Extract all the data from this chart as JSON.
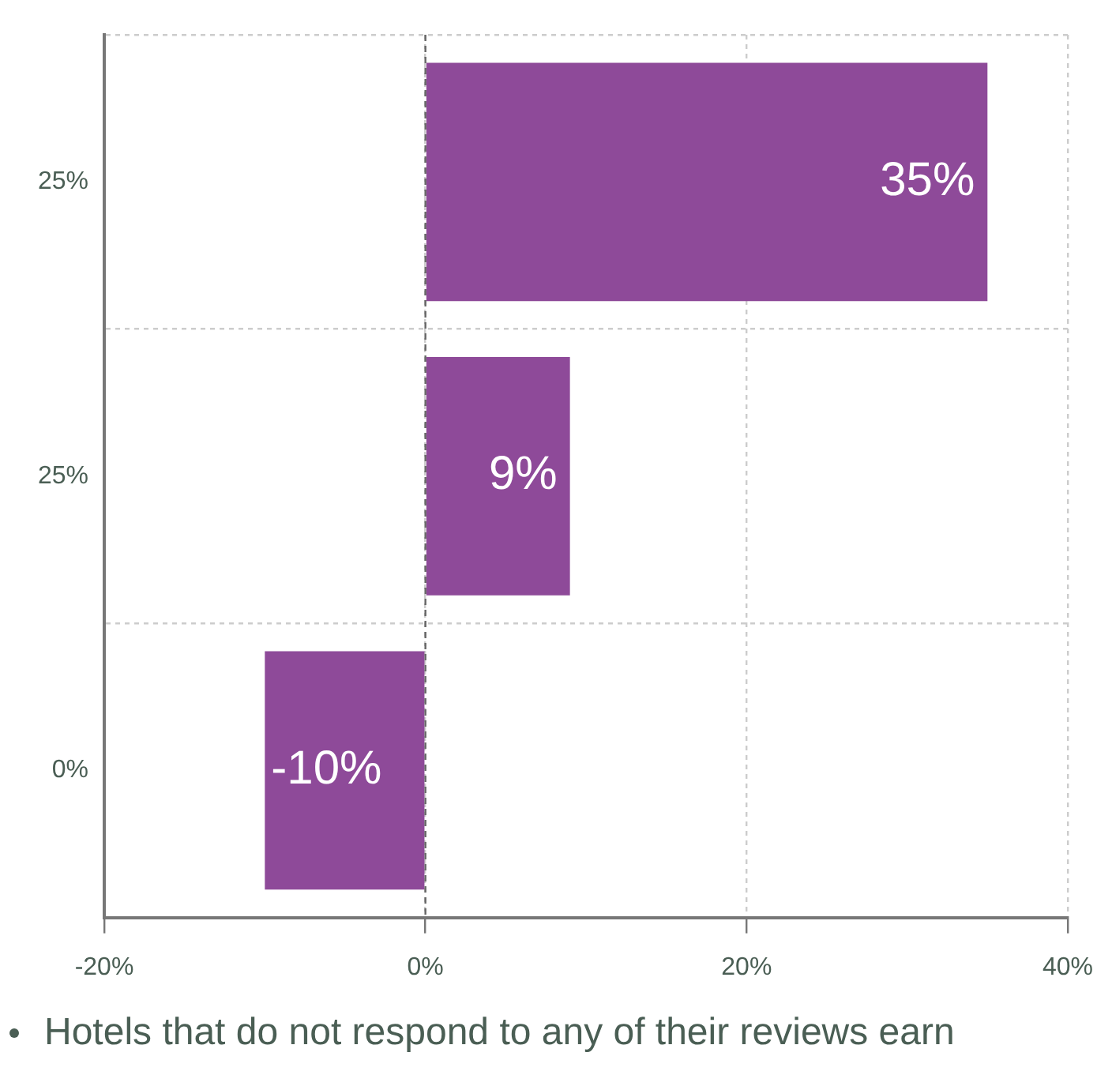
{
  "chart_data": {
    "type": "bar",
    "orientation": "horizontal",
    "categories": [
      "25%",
      "25%",
      "0%"
    ],
    "values": [
      35,
      9,
      -10
    ],
    "color": "#8e4a99",
    "xlim": [
      -20,
      40
    ],
    "xticks": [
      {
        "value": -20,
        "label": "-20%"
      },
      {
        "value": 0,
        "label": "0%"
      },
      {
        "value": 20,
        "label": "20%"
      },
      {
        "value": 40,
        "label": "40%"
      }
    ],
    "ref_lines": [
      {
        "axis": "x",
        "value": 0,
        "color": "#666666",
        "line_style": "dashed"
      }
    ],
    "data_labels": true,
    "value_labels": [
      "35%",
      "9%",
      "-10%"
    ],
    "grid": true,
    "legend": false,
    "annotations": [
      "Hotels that do not respond to any of their reviews earn"
    ]
  }
}
